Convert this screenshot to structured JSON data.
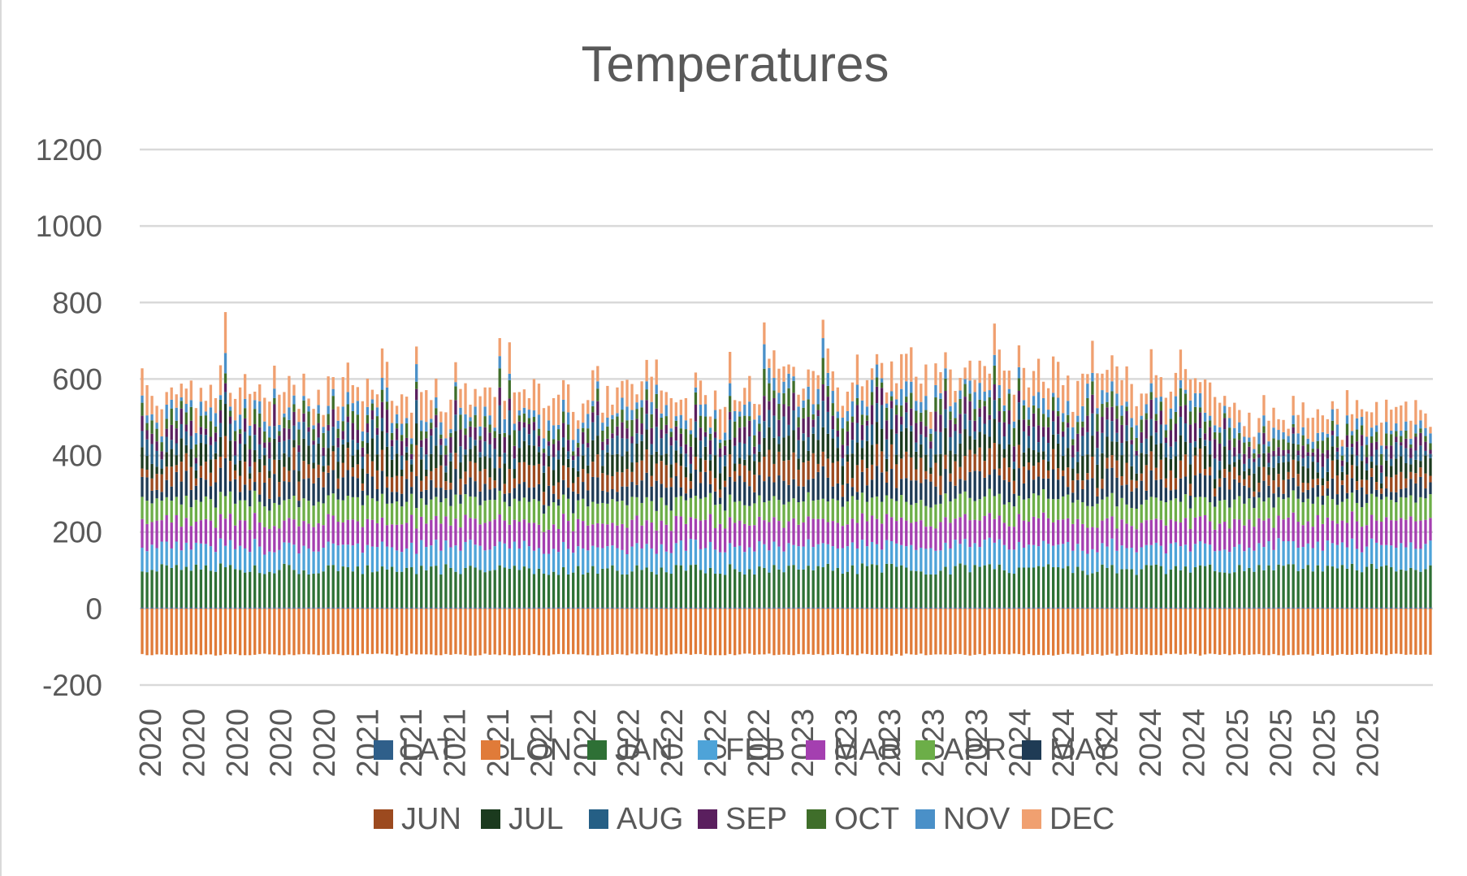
{
  "chart_data": {
    "type": "bar",
    "stacked": true,
    "title": "Temperatures",
    "xlabel": "",
    "ylabel": "",
    "ylim": [
      -200,
      1200
    ],
    "yticks": [
      -200,
      0,
      200,
      400,
      600,
      800,
      1000,
      1200
    ],
    "grid": true,
    "legend_position": "bottom",
    "x_tick_labels": [
      "2020",
      "2020",
      "2020",
      "2020",
      "2020",
      "2021",
      "2021",
      "2021",
      "2021",
      "2021",
      "2022",
      "2022",
      "2022",
      "2022",
      "2022",
      "2023",
      "2023",
      "2023",
      "2023",
      "2023",
      "2024",
      "2024",
      "2024",
      "2024",
      "2024",
      "2025",
      "2025",
      "2025",
      "2025"
    ],
    "categories_per_tick": 9,
    "category_count": 264,
    "series": [
      {
        "name": "LAT",
        "color": "#2f5f8a",
        "values": [],
        "mean_estimate": 3
      },
      {
        "name": "LON",
        "color": "#e07b39",
        "values": [],
        "mean_estimate": -120
      },
      {
        "name": "JAN",
        "color": "#2e7035",
        "values": [],
        "mean_estimate": 100
      },
      {
        "name": "FEB",
        "color": "#4ea3d8",
        "values": [],
        "mean_estimate": 60
      },
      {
        "name": "MAR",
        "color": "#a43fb0",
        "values": [],
        "mean_estimate": 65
      },
      {
        "name": "APR",
        "color": "#6cae48",
        "values": [],
        "mean_estimate": 55
      },
      {
        "name": "MAY",
        "color": "#1f3b55",
        "values": [],
        "mean_estimate": 45
      },
      {
        "name": "JUN",
        "color": "#9c4a1f",
        "values": [],
        "mean_estimate": 40
      },
      {
        "name": "JUL",
        "color": "#1b3a1e",
        "values": [],
        "mean_estimate": 40
      },
      {
        "name": "AUG",
        "color": "#255f85",
        "values": [],
        "mean_estimate": 35
      },
      {
        "name": "SEP",
        "color": "#5a1f5e",
        "values": [],
        "mean_estimate": 30
      },
      {
        "name": "OCT",
        "color": "#3f6e2a",
        "values": [],
        "mean_estimate": 28
      },
      {
        "name": "NOV",
        "color": "#4a90c8",
        "values": [],
        "mean_estimate": 25
      },
      {
        "name": "DEC",
        "color": "#f0a070",
        "values": [],
        "mean_estimate": 55
      }
    ],
    "legend_rows": [
      [
        "LAT",
        "LON",
        "JAN",
        "FEB",
        "MAR",
        "APR",
        "MAY"
      ],
      [
        "JUN",
        "JUL",
        "AUG",
        "SEP",
        "OCT",
        "NOV",
        "DEC"
      ]
    ],
    "colors": {
      "gridline": "#d9d9d9",
      "text": "#595959"
    }
  }
}
